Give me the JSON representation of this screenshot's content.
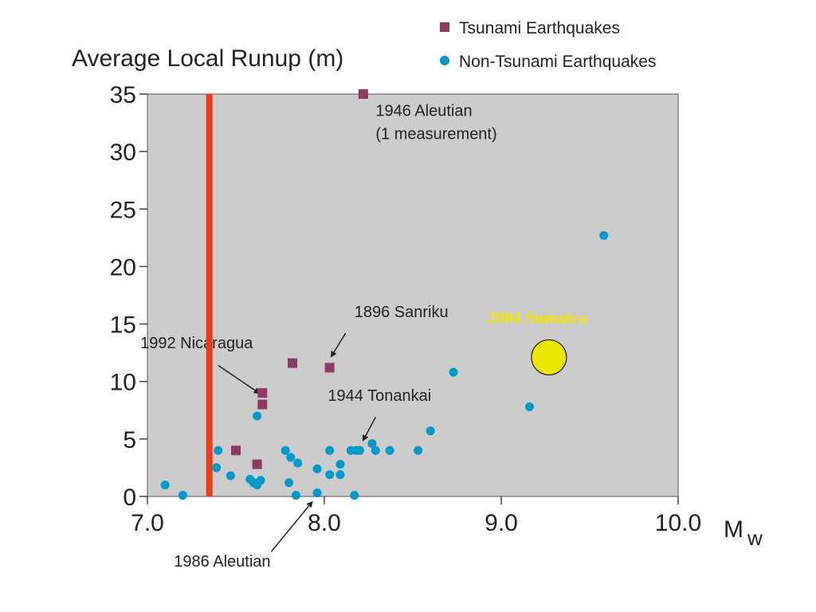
{
  "chart_data": {
    "type": "scatter",
    "ylabel": "Average Local Runup (m)",
    "xlabel": "M",
    "xlabel_sub": "w",
    "xlim": [
      7.0,
      10.0
    ],
    "ylim": [
      0,
      35
    ],
    "x_ticks": [
      7.0,
      8.0,
      9.0,
      10.0
    ],
    "x_tick_labels": [
      "7.0",
      "8.0",
      "9.0",
      "10.0"
    ],
    "y_ticks": [
      0,
      5,
      10,
      15,
      20,
      25,
      30,
      35
    ],
    "y_tick_labels": [
      "0",
      "5",
      "10",
      "15",
      "20",
      "25",
      "30",
      "35"
    ],
    "grid": false,
    "legend_placement": "top-right, outside plot",
    "threshold_line": {
      "x": 7.35,
      "color": "#f03a14"
    },
    "series": [
      {
        "name": "Tsunami Earthquakes",
        "marker": "square",
        "color": "#8e3a63",
        "points": [
          [
            8.22,
            35.0
          ],
          [
            7.82,
            11.6
          ],
          [
            8.03,
            11.2
          ],
          [
            7.65,
            9.0
          ],
          [
            7.65,
            8.0
          ],
          [
            7.5,
            4.0
          ],
          [
            7.62,
            2.8
          ]
        ]
      },
      {
        "name": "Non-Tsunami Earthquakes",
        "marker": "circle",
        "color": "#0099cc",
        "points": [
          [
            7.1,
            1.0
          ],
          [
            7.2,
            0.1
          ],
          [
            7.4,
            4.0
          ],
          [
            7.39,
            2.5
          ],
          [
            7.47,
            1.8
          ],
          [
            7.58,
            1.5
          ],
          [
            7.6,
            1.2
          ],
          [
            7.62,
            1.0
          ],
          [
            7.64,
            1.4
          ],
          [
            7.62,
            7.0
          ],
          [
            7.78,
            4.0
          ],
          [
            7.81,
            3.4
          ],
          [
            7.85,
            2.9
          ],
          [
            7.8,
            1.2
          ],
          [
            7.84,
            0.1
          ],
          [
            7.96,
            2.4
          ],
          [
            7.96,
            0.3
          ],
          [
            8.03,
            4.0
          ],
          [
            8.03,
            1.9
          ],
          [
            8.09,
            2.8
          ],
          [
            8.09,
            1.9
          ],
          [
            8.15,
            4.0
          ],
          [
            8.18,
            4.0
          ],
          [
            8.2,
            4.0
          ],
          [
            8.17,
            0.1
          ],
          [
            8.27,
            4.6
          ],
          [
            8.29,
            4.0
          ],
          [
            8.37,
            4.0
          ],
          [
            8.53,
            4.0
          ],
          [
            8.6,
            5.7
          ],
          [
            8.73,
            10.8
          ],
          [
            9.16,
            7.8
          ],
          [
            9.58,
            22.7
          ]
        ]
      }
    ],
    "highlight": {
      "x": 9.27,
      "y": 12.1,
      "label": "2004 Sumatra",
      "color": "#ece600"
    },
    "annotations": [
      {
        "text": "1946 Aleutian",
        "x": 8.29,
        "y": 33.1
      },
      {
        "text": "(1 measurement)",
        "x": 8.29,
        "y": 31.1
      },
      {
        "text": "1896 Sanriku",
        "x": 8.17,
        "y": 15.6,
        "arrow_from": [
          8.12,
          14.2
        ],
        "arrow_to": [
          8.04,
          12.2
        ]
      },
      {
        "text": "1992 Nicaragua",
        "x": 6.96,
        "y": 12.9,
        "arrow_from": [
          7.4,
          11.4
        ],
        "arrow_to": [
          7.63,
          9.0
        ]
      },
      {
        "text": "1944 Tonankai",
        "x": 8.02,
        "y": 8.3,
        "arrow_from": [
          8.29,
          6.9
        ],
        "arrow_to": [
          8.22,
          4.9
        ]
      },
      {
        "text": "1986 Aleutian",
        "x": 7.15,
        "y": -6.1,
        "arrow_from": [
          7.7,
          -4.8
        ],
        "arrow_to": [
          7.93,
          -0.5
        ]
      }
    ]
  }
}
